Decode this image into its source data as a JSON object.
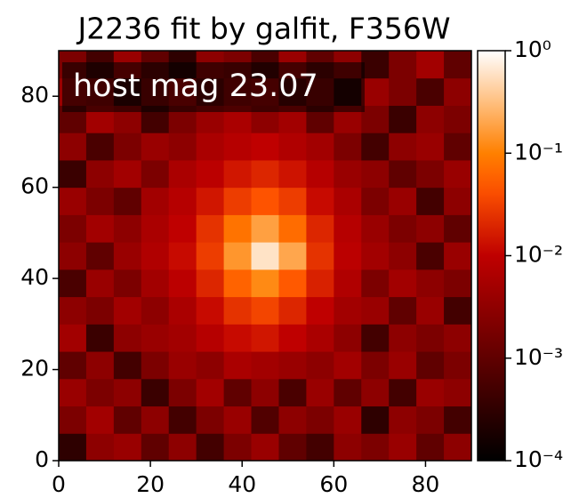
{
  "chart_data": {
    "type": "image",
    "title": "J2236 fit by galfit, F356W",
    "annotation": "host mag 23.07",
    "xlim": [
      0,
      90
    ],
    "ylim": [
      0,
      90
    ],
    "xticks": [
      0,
      20,
      40,
      60,
      80
    ],
    "yticks": [
      0,
      20,
      40,
      60,
      80
    ],
    "colormap": "gist_heat",
    "color_log": true,
    "clim": [
      0.0001,
      1
    ],
    "cticks": [
      {
        "value": 1,
        "label": "10⁰"
      },
      {
        "value": 0.1,
        "label": "10⁻¹"
      },
      {
        "value": 0.01,
        "label": "10⁻²"
      },
      {
        "value": 0.001,
        "label": "10⁻³"
      },
      {
        "value": 0.0001,
        "label": "10⁻⁴"
      }
    ],
    "z": [
      [
        0.0003,
        0.003,
        0.004,
        0.001,
        0.003,
        0.0005,
        0.002,
        0.004,
        0.001,
        0.0005,
        0.003,
        0.002,
        0.004,
        0.001,
        0.003
      ],
      [
        0.002,
        0.005,
        0.001,
        0.003,
        0.0005,
        0.002,
        0.004,
        0.0007,
        0.003,
        0.002,
        0.004,
        0.0003,
        0.003,
        0.002,
        0.0005
      ],
      [
        0.004,
        0.002,
        0.003,
        0.0004,
        0.002,
        0.005,
        0.001,
        0.003,
        0.0006,
        0.004,
        0.001,
        0.003,
        0.0005,
        0.004,
        0.003
      ],
      [
        0.001,
        0.003,
        0.0005,
        0.002,
        0.004,
        0.003,
        0.006,
        0.005,
        0.004,
        0.003,
        0.005,
        0.002,
        0.004,
        0.001,
        0.002
      ],
      [
        0.005,
        0.0004,
        0.003,
        0.004,
        0.005,
        0.008,
        0.012,
        0.015,
        0.01,
        0.006,
        0.003,
        0.0005,
        0.003,
        0.002,
        0.003
      ],
      [
        0.003,
        0.002,
        0.005,
        0.003,
        0.006,
        0.012,
        0.025,
        0.035,
        0.02,
        0.01,
        0.005,
        0.004,
        0.001,
        0.004,
        0.0005
      ],
      [
        0.0006,
        0.004,
        0.002,
        0.005,
        0.009,
        0.02,
        0.06,
        0.12,
        0.05,
        0.018,
        0.007,
        0.002,
        0.005,
        0.003,
        0.002
      ],
      [
        0.003,
        0.001,
        0.004,
        0.007,
        0.012,
        0.03,
        0.15,
        0.6,
        0.2,
        0.025,
        0.009,
        0.005,
        0.003,
        0.0006,
        0.004
      ],
      [
        0.002,
        0.005,
        0.003,
        0.006,
        0.01,
        0.025,
        0.08,
        0.18,
        0.07,
        0.02,
        0.008,
        0.004,
        0.002,
        0.003,
        0.001
      ],
      [
        0.004,
        0.002,
        0.001,
        0.005,
        0.008,
        0.015,
        0.03,
        0.045,
        0.03,
        0.012,
        0.006,
        0.002,
        0.004,
        0.0005,
        0.003
      ],
      [
        0.0004,
        0.003,
        0.005,
        0.002,
        0.006,
        0.009,
        0.015,
        0.02,
        0.014,
        0.008,
        0.004,
        0.003,
        0.001,
        0.002,
        0.004
      ],
      [
        0.003,
        0.0006,
        0.002,
        0.004,
        0.003,
        0.006,
        0.008,
        0.01,
        0.007,
        0.005,
        0.002,
        0.0005,
        0.003,
        0.004,
        0.001
      ],
      [
        0.001,
        0.005,
        0.003,
        0.0005,
        0.002,
        0.004,
        0.006,
        0.003,
        0.005,
        0.001,
        0.004,
        0.002,
        0.0004,
        0.003,
        0.002
      ],
      [
        0.004,
        0.003,
        0.0004,
        0.002,
        0.005,
        0.001,
        0.003,
        0.004,
        0.0008,
        0.002,
        0.0003,
        0.004,
        0.002,
        0.0006,
        0.003
      ],
      [
        0.002,
        0.0005,
        0.004,
        0.001,
        0.0003,
        0.003,
        0.002,
        0.0006,
        0.004,
        0.001,
        0.003,
        0.0004,
        0.002,
        0.005,
        0.001
      ]
    ]
  }
}
